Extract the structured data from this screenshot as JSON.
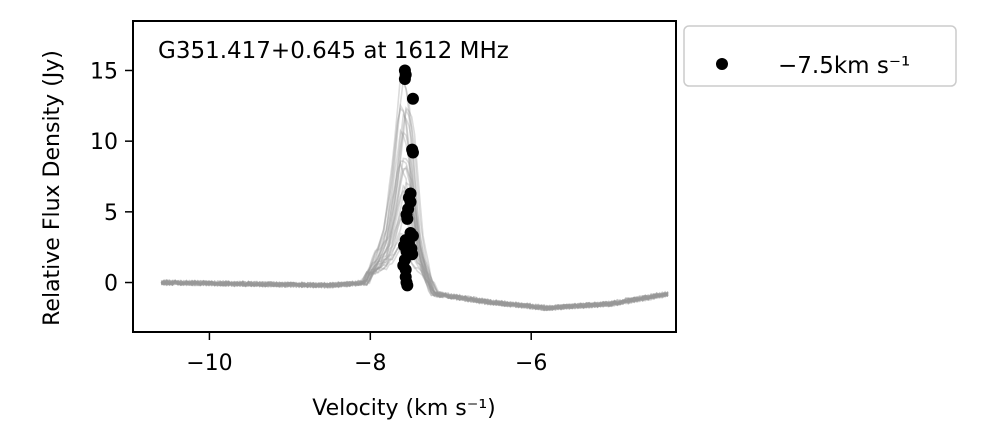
{
  "chart_data": {
    "type": "line",
    "title": "G351.417+0.645 at 1612 MHz",
    "xlabel": "Velocity (km s⁻¹)",
    "ylabel": "Relative Flux Density (Jy)",
    "xlim": [
      -10.95,
      -4.2
    ],
    "ylim": [
      -3.5,
      18.5
    ],
    "xticks": [
      -10,
      -8,
      -6
    ],
    "xtick_labels": [
      "−10",
      "−8",
      "−6"
    ],
    "yticks": [
      0,
      5,
      10,
      15
    ],
    "ytick_labels": [
      "0",
      "5",
      "10",
      "15"
    ],
    "grid": false,
    "legend_position": "outside-right-top",
    "legend": [
      {
        "label": "−7.5km s⁻¹",
        "marker": "circle",
        "color": "#000000"
      }
    ],
    "colors": {
      "spectra": "#999999",
      "peaks": "#000000"
    },
    "spectrum_profile": {
      "velocity": [
        -10.6,
        -9.5,
        -8.5,
        -8.05,
        -7.95,
        -7.8,
        -7.7,
        -7.6,
        -7.55,
        -7.5,
        -7.45,
        -7.4,
        -7.3,
        -7.2,
        -6.5,
        -5.8,
        -5.0,
        -4.3
      ],
      "flux": [
        0.0,
        -0.1,
        -0.2,
        0.0,
        1.5,
        4.0,
        8.5,
        14.8,
        14.2,
        12.5,
        8.0,
        4.0,
        0.5,
        -0.8,
        -1.4,
        -1.8,
        -1.5,
        -0.8
      ],
      "peak_range": [
        1.0,
        15.0
      ]
    },
    "series": [
      {
        "name": "−7.5km s⁻¹",
        "points": [
          {
            "x": -7.57,
            "y": 15.0
          },
          {
            "x": -7.56,
            "y": 14.7
          },
          {
            "x": -7.57,
            "y": 14.4
          },
          {
            "x": -7.47,
            "y": 13.0
          },
          {
            "x": -7.48,
            "y": 9.4
          },
          {
            "x": -7.47,
            "y": 9.2
          },
          {
            "x": -7.5,
            "y": 6.3
          },
          {
            "x": -7.52,
            "y": 6.0
          },
          {
            "x": -7.5,
            "y": 5.7
          },
          {
            "x": -7.53,
            "y": 5.2
          },
          {
            "x": -7.55,
            "y": 4.8
          },
          {
            "x": -7.54,
            "y": 4.5
          },
          {
            "x": -7.5,
            "y": 3.5
          },
          {
            "x": -7.47,
            "y": 3.3
          },
          {
            "x": -7.56,
            "y": 3.0
          },
          {
            "x": -7.52,
            "y": 2.8
          },
          {
            "x": -7.58,
            "y": 2.6
          },
          {
            "x": -7.49,
            "y": 2.4
          },
          {
            "x": -7.55,
            "y": 2.2
          },
          {
            "x": -7.48,
            "y": 2.0
          },
          {
            "x": -7.57,
            "y": 1.6
          },
          {
            "x": -7.59,
            "y": 1.2
          },
          {
            "x": -7.56,
            "y": 0.9
          },
          {
            "x": -7.56,
            "y": 0.4
          },
          {
            "x": -7.55,
            "y": 0.0
          },
          {
            "x": -7.54,
            "y": -0.2
          }
        ]
      }
    ]
  }
}
